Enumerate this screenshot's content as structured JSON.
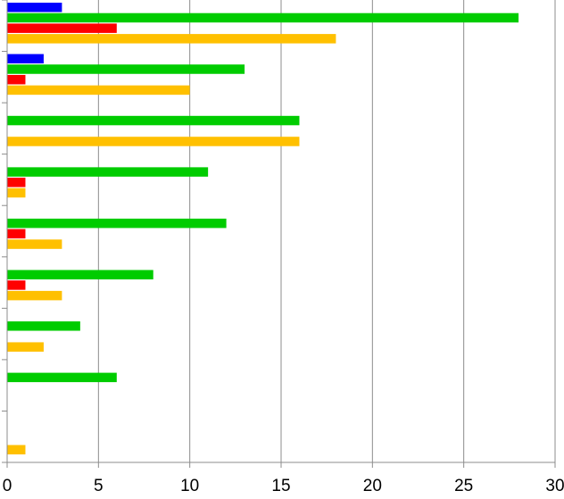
{
  "chart_data": {
    "type": "bar",
    "orientation": "horizontal",
    "title": "",
    "xlabel": "",
    "ylabel": "",
    "xlim": [
      0,
      30
    ],
    "xticks": [
      "0",
      "5",
      "10",
      "15",
      "20",
      "25",
      "30"
    ],
    "grid": true,
    "legend": "none",
    "categories": [
      "",
      "",
      "",
      "",
      "",
      "",
      "",
      "",
      ""
    ],
    "series": [
      {
        "color": "#0000FF",
        "values": [
          3,
          2,
          0,
          0,
          0,
          0,
          0,
          0,
          0
        ]
      },
      {
        "color": "#00CC00",
        "values": [
          28,
          13,
          16,
          11,
          12,
          8,
          4,
          6,
          0
        ]
      },
      {
        "color": "#FF0000",
        "values": [
          6,
          1,
          0,
          1,
          1,
          1,
          0,
          0,
          0
        ]
      },
      {
        "color": "#FFC000",
        "values": [
          18,
          10,
          16,
          1,
          3,
          3,
          2,
          0,
          1
        ]
      }
    ]
  }
}
